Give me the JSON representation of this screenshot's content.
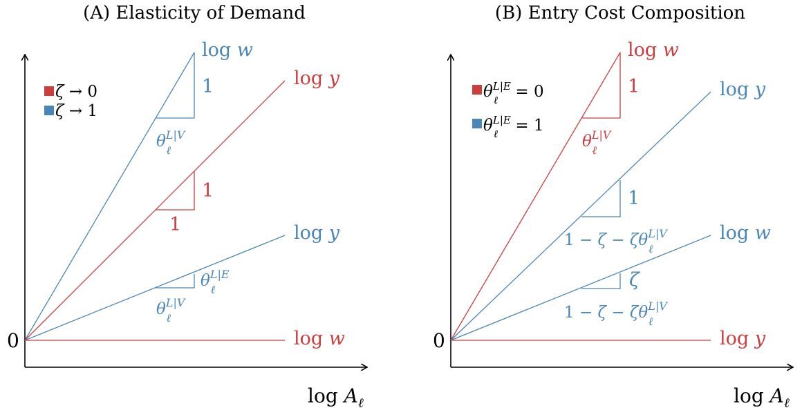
{
  "colors": {
    "red": "#cc3d3d",
    "blue": "#4a86b8",
    "axis": "#000000"
  },
  "panel_a": {
    "title": "(A) Elasticity of Demand",
    "origin_label": "0",
    "x_axis_label": "log A_ℓ",
    "legend": [
      {
        "color": "red",
        "text": "ζ → 0"
      },
      {
        "color": "blue",
        "text": "ζ → 1"
      }
    ],
    "lines": [
      {
        "color": "blue",
        "label": "log w"
      },
      {
        "color": "red",
        "label": "log y"
      },
      {
        "color": "blue",
        "label": "log y"
      },
      {
        "color": "red",
        "label": "log w"
      }
    ],
    "triangles": [
      {
        "color": "blue",
        "vertical": "1",
        "horizontal": "θ_ℓ^{L|V}"
      },
      {
        "color": "red",
        "vertical": "1",
        "horizontal": "1"
      },
      {
        "color": "blue",
        "vertical": "θ_ℓ^{L|E}",
        "horizontal": "θ_ℓ^{L|V}"
      }
    ]
  },
  "panel_b": {
    "title": "(B) Entry Cost Composition",
    "origin_label": "0",
    "x_axis_label": "log A_ℓ",
    "legend": [
      {
        "color": "red",
        "text": "θ_ℓ^{L|E} = 0"
      },
      {
        "color": "blue",
        "text": "θ_ℓ^{L|E} = 1"
      }
    ],
    "lines": [
      {
        "color": "red",
        "label": "log w"
      },
      {
        "color": "blue",
        "label": "log y"
      },
      {
        "color": "blue",
        "label": "log w"
      },
      {
        "color": "red",
        "label": "log y"
      }
    ],
    "triangles": [
      {
        "color": "red",
        "vertical": "1",
        "horizontal": "θ_ℓ^{L|V}"
      },
      {
        "color": "blue",
        "vertical": "1",
        "horizontal": "1 − ζ − ζθ_ℓ^{L|V}"
      },
      {
        "color": "blue",
        "vertical": "ζ",
        "horizontal": "1 − ζ − ζθ_ℓ^{L|V}"
      }
    ]
  }
}
